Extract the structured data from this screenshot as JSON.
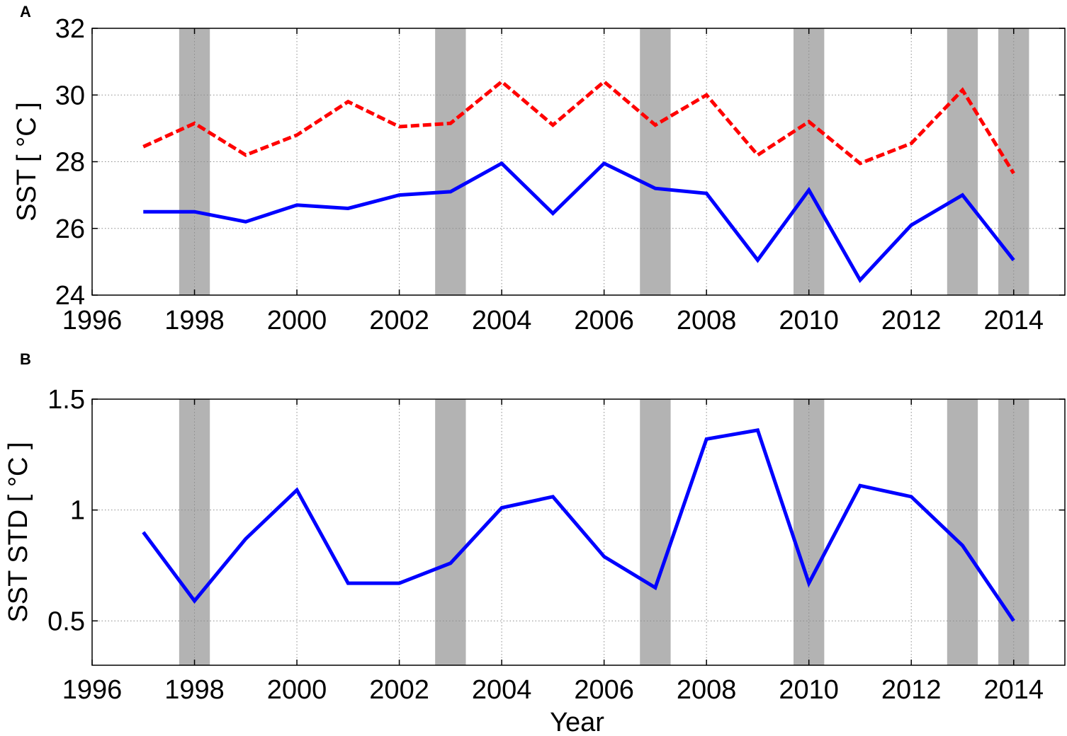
{
  "colors": {
    "shade": "#b3b3b3",
    "solid_series": "#0000ff",
    "dashed_series": "#ff0000",
    "grid": "#8c8c8c",
    "axes": "#000000"
  },
  "chart_data": [
    {
      "panel_label": "A",
      "type": "line",
      "ylabel": "SST [ °C ]",
      "xlabel": "",
      "xlim": [
        1996,
        2015
      ],
      "ylim": [
        24,
        32
      ],
      "x_ticks": [
        1996,
        1998,
        2000,
        2002,
        2004,
        2006,
        2008,
        2010,
        2012,
        2014
      ],
      "y_ticks": [
        24,
        26,
        28,
        30,
        32
      ],
      "grid": true,
      "shaded_years": [
        1998,
        2003,
        2007,
        2010,
        2013,
        2014
      ],
      "series": [
        {
          "style": "dashed",
          "color": "#ff0000",
          "x": [
            1997,
            1998,
            1999,
            2000,
            2001,
            2002,
            2003,
            2004,
            2005,
            2006,
            2007,
            2008,
            2009,
            2010,
            2011,
            2012,
            2013,
            2014
          ],
          "values": [
            28.45,
            29.15,
            28.2,
            28.8,
            29.8,
            29.05,
            29.15,
            30.4,
            29.1,
            30.4,
            29.1,
            30.0,
            28.2,
            29.2,
            27.95,
            28.55,
            30.15,
            27.65
          ]
        },
        {
          "style": "solid",
          "color": "#0000ff",
          "x": [
            1997,
            1998,
            1999,
            2000,
            2001,
            2002,
            2003,
            2004,
            2005,
            2006,
            2007,
            2008,
            2009,
            2010,
            2011,
            2012,
            2013,
            2014
          ],
          "values": [
            26.5,
            26.5,
            26.2,
            26.7,
            26.6,
            27.0,
            27.1,
            27.95,
            26.45,
            27.95,
            27.2,
            27.05,
            25.05,
            27.15,
            24.45,
            26.1,
            27.0,
            25.05
          ]
        }
      ]
    },
    {
      "panel_label": "B",
      "type": "line",
      "ylabel": "SST STD [ °C ]",
      "xlabel": "Year",
      "xlim": [
        1996,
        2015
      ],
      "ylim": [
        0.3,
        1.5
      ],
      "x_ticks": [
        1996,
        1998,
        2000,
        2002,
        2004,
        2006,
        2008,
        2010,
        2012,
        2014
      ],
      "y_ticks": [
        0.5,
        1,
        1.5
      ],
      "y_tick_labels": [
        "0.5",
        "1",
        "1.5"
      ],
      "grid": true,
      "shaded_years": [
        1998,
        2003,
        2007,
        2010,
        2013,
        2014
      ],
      "series": [
        {
          "style": "solid",
          "color": "#0000ff",
          "x": [
            1997,
            1998,
            1999,
            2000,
            2001,
            2002,
            2003,
            2004,
            2005,
            2006,
            2007,
            2008,
            2009,
            2010,
            2011,
            2012,
            2013,
            2014
          ],
          "values": [
            0.9,
            0.59,
            0.87,
            1.09,
            0.67,
            0.67,
            0.76,
            1.01,
            1.06,
            0.79,
            0.65,
            1.32,
            1.36,
            0.67,
            1.11,
            1.06,
            0.84,
            0.5
          ]
        }
      ]
    }
  ]
}
